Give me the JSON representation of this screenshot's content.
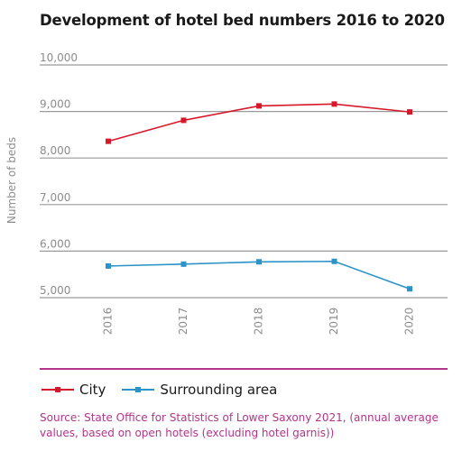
{
  "title": "Development of hotel bed numbers 2016 to 2020",
  "ylabel": "Number of beds",
  "source": "Source: State Office for Statistics of Lower Saxony 2021, (annual average values, based on open hotels (excluding hotel garnis))",
  "colors": {
    "city": "#d7182a",
    "surrounding": "#2b93c8",
    "grid": "#9a9a9a",
    "accent": "#b2358a",
    "tick": "#8c8c8c"
  },
  "chart_data": {
    "type": "line",
    "title": "Development of hotel bed numbers 2016 to 2020",
    "xlabel": "",
    "ylabel": "Number of beds",
    "x": [
      "2016",
      "2017",
      "2018",
      "2019",
      "2020"
    ],
    "ylim": [
      5000,
      10000
    ],
    "yticks": [
      5000,
      6000,
      7000,
      8000,
      9000,
      10000
    ],
    "ytick_labels": [
      "5,000",
      "6,000",
      "7,000",
      "8,000",
      "9,000",
      "10,000"
    ],
    "grid": true,
    "legend": "bottom",
    "series": [
      {
        "name": "City",
        "color": "#d7182a",
        "values": [
          8360,
          8810,
          9120,
          9160,
          8990
        ]
      },
      {
        "name": "Surrounding area",
        "color": "#2b93c8",
        "values": [
          5680,
          5720,
          5770,
          5780,
          5190
        ]
      }
    ]
  }
}
